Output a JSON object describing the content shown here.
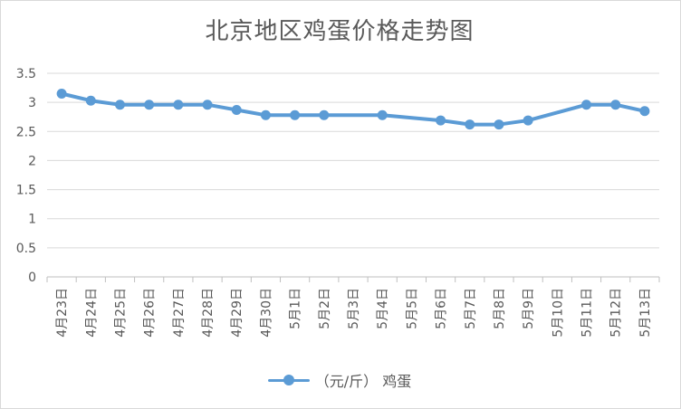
{
  "chart_data": {
    "type": "line",
    "title": "北京地区鸡蛋价格走势图",
    "categories": [
      "4月23日",
      "4月24日",
      "4月25日",
      "4月26日",
      "4月27日",
      "4月28日",
      "4月29日",
      "4月30日",
      "5月1日",
      "5月2日",
      "5月3日",
      "5月4日",
      "5月5日",
      "5月6日",
      "5月7日",
      "5月8日",
      "5月9日",
      "5月10日",
      "5月11日",
      "5月12日",
      "5月13日"
    ],
    "series": [
      {
        "name": "（元/斤） 鸡蛋",
        "color": "#5b9bd5",
        "values": [
          3.15,
          3.03,
          2.96,
          2.96,
          2.96,
          2.96,
          2.87,
          2.78,
          2.78,
          2.78,
          null,
          2.78,
          null,
          2.69,
          2.62,
          2.62,
          2.69,
          null,
          2.96,
          2.96,
          2.85
        ]
      }
    ],
    "yticks": [
      "0",
      "0.5",
      "1",
      "1.5",
      "2",
      "2.5",
      "3",
      "3.5"
    ],
    "ylim": [
      0,
      3.5
    ],
    "grid": true,
    "legend_position": "bottom"
  }
}
